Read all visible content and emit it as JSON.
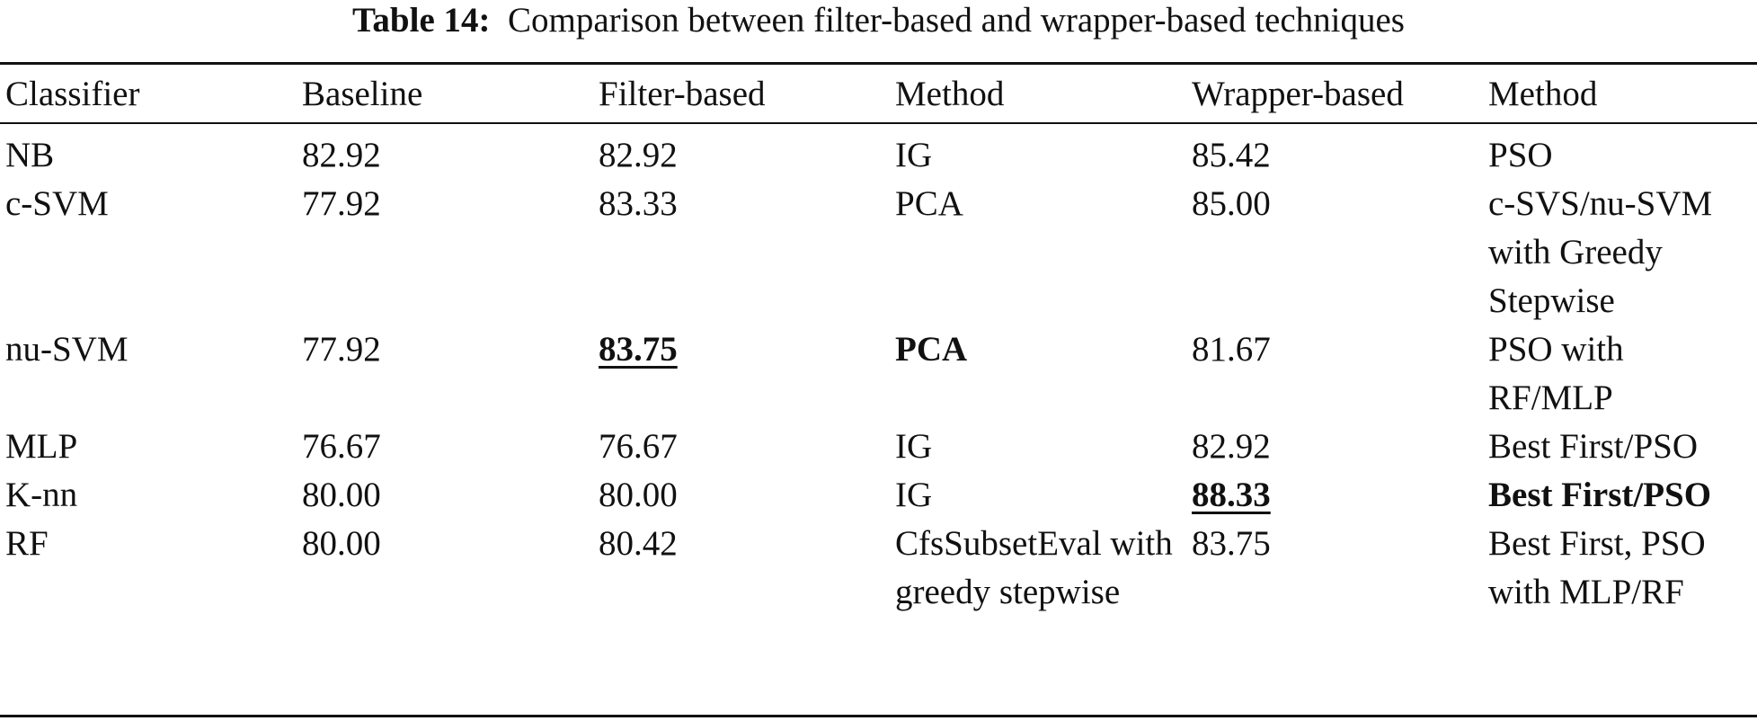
{
  "caption": {
    "label": "Table 14:",
    "text": "Comparison between filter-based and wrapper-based techniques"
  },
  "table": {
    "headers": [
      "Classifier",
      "Baseline",
      "Filter-based",
      "Method",
      "Wrapper-based",
      "Method"
    ],
    "rows": [
      [
        "NB",
        "82.92",
        "82.92",
        "IG",
        "85.42",
        "PSO"
      ],
      [
        "c-SVM",
        "77.92",
        "83.33",
        "PCA",
        "85.00",
        "c-SVS/nu-SVM with Greedy Stepwise"
      ],
      [
        "nu-SVM",
        "77.92",
        "83.75",
        "PCA",
        "81.67",
        "PSO with RF/MLP"
      ],
      [
        "MLP",
        "76.67",
        "76.67",
        "IG",
        "82.92",
        "Best First/PSO"
      ],
      [
        "K-nn",
        "80.00",
        "80.00",
        "IG",
        "88.33",
        "Best First/PSO"
      ],
      [
        "RF",
        "80.00",
        "80.42",
        "CfsSubsetEval with greedy stepwise",
        "83.75",
        "Best First, PSO with MLP/RF"
      ]
    ]
  }
}
